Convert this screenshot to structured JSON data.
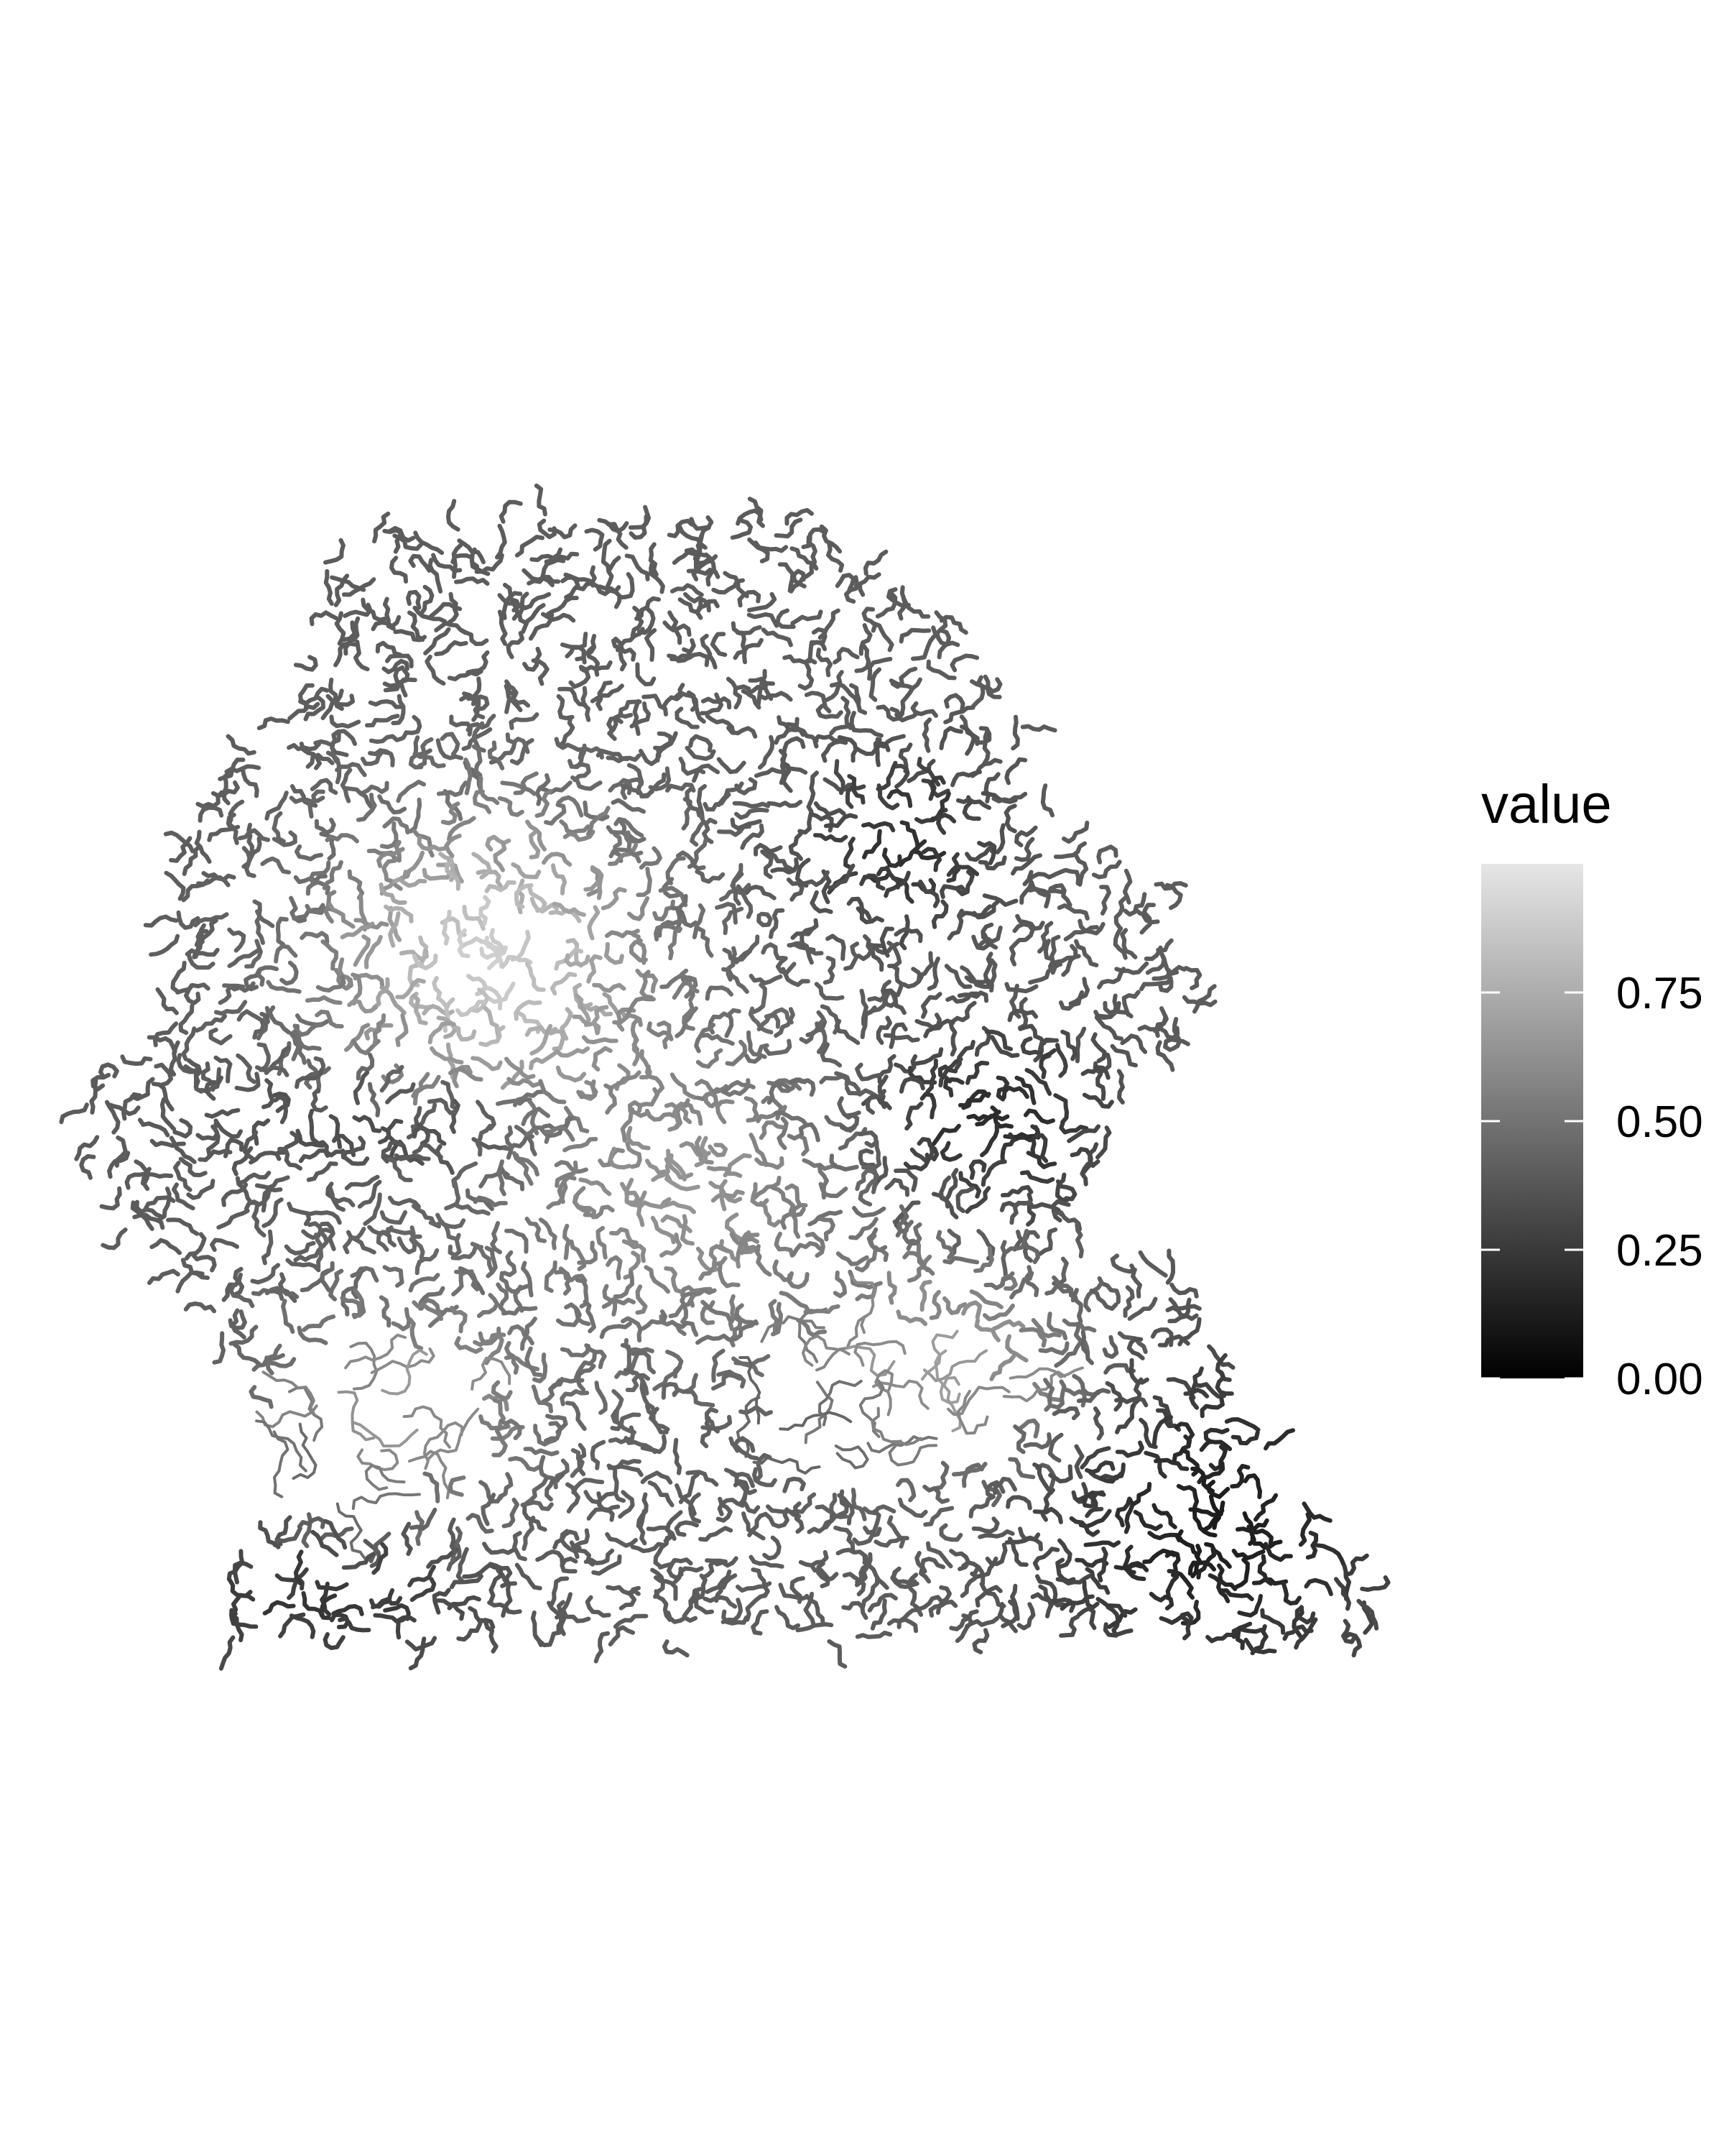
{
  "chart_data": {
    "type": "heatmap",
    "title": "",
    "xlabel": "",
    "ylabel": "",
    "grid": false,
    "colorscale": {
      "low_color": "#000000",
      "high_color": "#e6e6e6",
      "range": [
        0.0,
        1.0
      ]
    },
    "legend": {
      "title": "value",
      "position": "right",
      "ticks": [
        {
          "value": 0.0,
          "label": "0.00"
        },
        {
          "value": 0.25,
          "label": "0.25"
        },
        {
          "value": 0.5,
          "label": "0.50"
        },
        {
          "value": 0.75,
          "label": "0.75"
        }
      ]
    },
    "value_regions": [
      {
        "description": "overall mean",
        "value": 0.4
      },
      {
        "description": "bright forehead patch",
        "value": 0.9
      },
      {
        "description": "dark lower-right shoulder",
        "value": 0.12
      }
    ]
  }
}
